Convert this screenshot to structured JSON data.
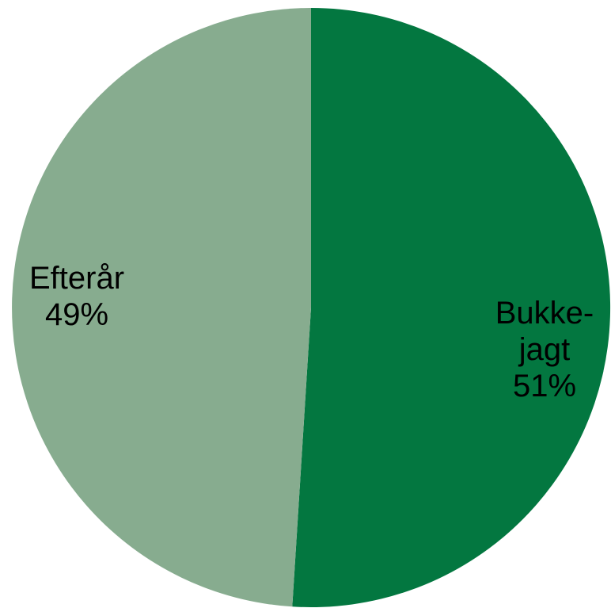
{
  "chart_data": {
    "type": "pie",
    "start_angle_deg": 0,
    "direction": "clockwise",
    "slices": [
      {
        "label_lines": [
          "Bukke-",
          "jagt"
        ],
        "value_label": "51%",
        "value": 51,
        "color": "#037740"
      },
      {
        "label_lines": [
          "Efterår"
        ],
        "value_label": "49%",
        "value": 49,
        "color": "#87ac8f"
      }
    ]
  }
}
